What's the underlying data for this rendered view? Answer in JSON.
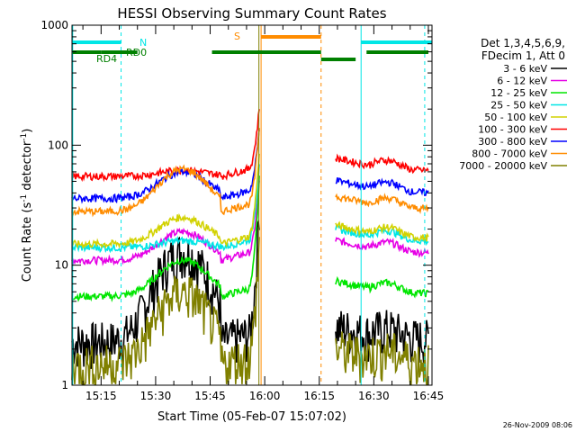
{
  "chart_data": {
    "type": "line",
    "title": "HESSI Observing Summary Count Rates",
    "xlabel": "Start Time (05-Feb-07 15:07:02)",
    "ylabel_main": "Count Rate (s",
    "ylabel_sup1": "-1",
    "ylabel_mid": " detector",
    "ylabel_sup2": "-1",
    "ylabel_end": ")",
    "ylog": true,
    "ylim": [
      1,
      1000
    ],
    "xlim_min": [
      907,
      1006
    ],
    "yticks": [
      {
        "value": 1,
        "label": "1"
      },
      {
        "value": 10,
        "label": "10"
      },
      {
        "value": 100,
        "label": "100"
      },
      {
        "value": 1000,
        "label": "1000"
      }
    ],
    "xticks": [
      {
        "value": 915,
        "label": "15:15"
      },
      {
        "value": 930,
        "label": "15:30"
      },
      {
        "value": 945,
        "label": "15:45"
      },
      {
        "value": 960,
        "label": "16:00"
      },
      {
        "value": 975,
        "label": "16:15"
      },
      {
        "value": 990,
        "label": "16:30"
      },
      {
        "value": 1005,
        "label": "16:45"
      }
    ],
    "legend": {
      "placement": "right",
      "header": [
        "Det 1,3,4,5,6,9,",
        "FDecim 1, Att 0"
      ]
    },
    "series": [
      {
        "name": "3 - 6 keV",
        "color": "#000000",
        "base": 2.3,
        "peak": 13,
        "flare": 40,
        "post": 2.3
      },
      {
        "name": "6 - 12 keV",
        "color": "#e600e6",
        "base": 11,
        "peak": 19,
        "flare": 55,
        "post": 12
      },
      {
        "name": "12 - 25 keV",
        "color": "#00e600",
        "base": 5.5,
        "peak": 11,
        "flare": 60,
        "post": 5.5
      },
      {
        "name": "25 - 50 keV",
        "color": "#00e6e6",
        "base": 14,
        "peak": 16,
        "flare": 80,
        "post": 15
      },
      {
        "name": "50 - 100 keV",
        "color": "#d2d200",
        "base": 15,
        "peak": 25,
        "flare": 100,
        "post": 16
      },
      {
        "name": "100 - 300 keV",
        "color": "#ff0000",
        "base": 55,
        "peak": 62,
        "flare": 220,
        "post": 58
      },
      {
        "name": "300 - 800 keV",
        "color": "#0000ff",
        "base": 36,
        "peak": 60,
        "flare": 150,
        "post": 38
      },
      {
        "name": "800 - 7000 keV",
        "color": "#ff8c00",
        "base": 28,
        "peak": 63,
        "flare": 160,
        "post": 28
      },
      {
        "name": "7000 - 20000 keV",
        "color": "#808000",
        "base": 1.5,
        "peak": 6,
        "flare": 20,
        "post": 1.5
      }
    ],
    "annotations": {
      "n_label": "N",
      "rd0_label": "RD0",
      "rd4_label": "RD4",
      "s_label": "S",
      "n_color": "#00e6e6",
      "rd_color": "#008000",
      "s_color": "#ff8c00"
    }
  },
  "footer": {
    "timestamp": "26-Nov-2009 08:06"
  }
}
